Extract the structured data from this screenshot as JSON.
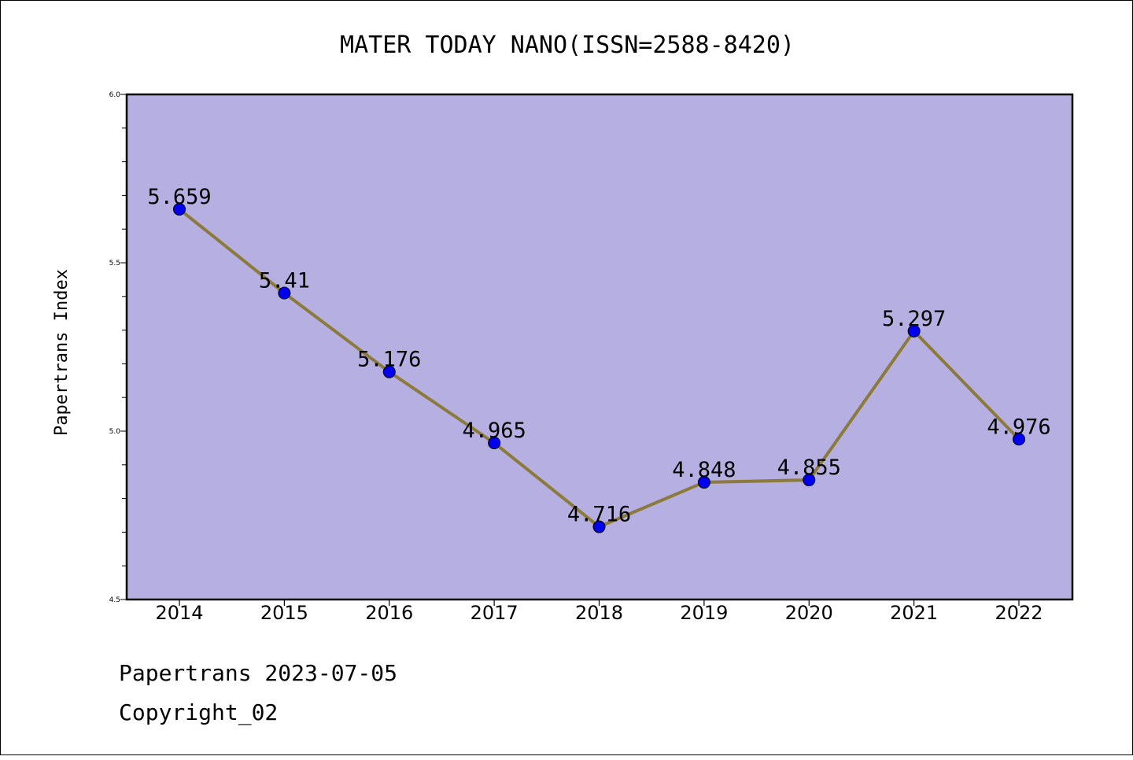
{
  "chart_data": {
    "type": "line",
    "title": "MATER TODAY NANO(ISSN=2588-8420)",
    "xlabel": "",
    "ylabel": "Papertrans Index",
    "categories": [
      "2014",
      "2015",
      "2016",
      "2017",
      "2018",
      "2019",
      "2020",
      "2021",
      "2022"
    ],
    "series": [
      {
        "values": [
          5.659,
          5.41,
          5.176,
          4.965,
          4.716,
          4.848,
          4.855,
          5.297,
          4.976
        ]
      }
    ],
    "data_labels": [
      "5.659",
      "5.41",
      "5.176",
      "4.965",
      "4.716",
      "4.848",
      "4.855",
      "5.297",
      "4.976"
    ],
    "ylim": [
      4.5,
      6.0
    ],
    "yticks": [
      "4.5",
      "5.0",
      "5.5",
      "6.0"
    ],
    "ytick_values": [
      4.5,
      5.0,
      5.5,
      6.0
    ],
    "grid": false,
    "colors": {
      "plot_background": "#b5afe2",
      "line": "#8c7a3a",
      "marker": "#0000ee"
    }
  },
  "footer": {
    "line1": "Papertrans 2023-07-05",
    "line2": "Copyright_02"
  }
}
